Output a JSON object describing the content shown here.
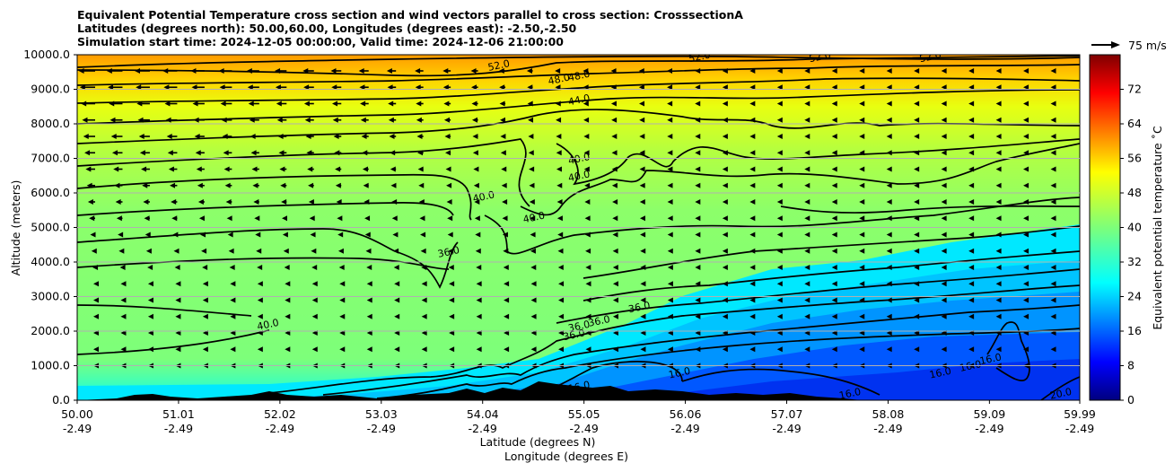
{
  "header": {
    "title_line1": "Equivalent Potential Temperature cross section and wind vectors parallel to cross section: CrosssectionA",
    "title_line2": "Latitudes (degrees north): 50.00,60.00, Longitudes (degrees east): -2.50,-2.50",
    "title_line3": "Simulation start time: 2024-12-05 00:00:00, Valid time: 2024-12-06 21:00:00"
  },
  "chart_data": {
    "type": "heatmap",
    "xlabel_line1": "Latitude (degrees N)",
    "xlabel_line2": "Longitude (degrees E)",
    "ylabel": "Altitude (meters)",
    "xlim": [
      50.0,
      59.99
    ],
    "ylim": [
      0,
      10000
    ],
    "x_ticks": [
      {
        "lat": "50.00",
        "lon": "-2.49",
        "value": 50.0
      },
      {
        "lat": "51.01",
        "lon": "-2.49",
        "value": 51.01
      },
      {
        "lat": "52.02",
        "lon": "-2.49",
        "value": 52.02
      },
      {
        "lat": "53.03",
        "lon": "-2.49",
        "value": 53.03
      },
      {
        "lat": "54.04",
        "lon": "-2.49",
        "value": 54.04
      },
      {
        "lat": "55.05",
        "lon": "-2.49",
        "value": 55.05
      },
      {
        "lat": "56.06",
        "lon": "-2.49",
        "value": 56.06
      },
      {
        "lat": "57.07",
        "lon": "-2.49",
        "value": 57.07
      },
      {
        "lat": "58.08",
        "lon": "-2.49",
        "value": 58.08
      },
      {
        "lat": "59.09",
        "lon": "-2.49",
        "value": 59.09
      },
      {
        "lat": "59.99",
        "lon": "-2.49",
        "value": 59.99
      }
    ],
    "y_ticks": [
      {
        "label": "0.0",
        "value": 0
      },
      {
        "label": "1000.0",
        "value": 1000
      },
      {
        "label": "2000.0",
        "value": 2000
      },
      {
        "label": "3000.0",
        "value": 3000
      },
      {
        "label": "4000.0",
        "value": 4000
      },
      {
        "label": "5000.0",
        "value": 5000
      },
      {
        "label": "6000.0",
        "value": 6000
      },
      {
        "label": "7000.0",
        "value": 7000
      },
      {
        "label": "8000.0",
        "value": 8000
      },
      {
        "label": "9000.0",
        "value": 9000
      },
      {
        "label": "10000.0",
        "value": 10000
      }
    ],
    "grid": "horizontal",
    "colorbar": {
      "label": "Equivalent potential temperature ˚C",
      "min": 0,
      "max": 80,
      "ticks": [
        "0",
        "8",
        "16",
        "24",
        "32",
        "40",
        "48",
        "56",
        "64",
        "72"
      ],
      "tick_values": [
        0,
        8,
        16,
        24,
        32,
        40,
        48,
        56,
        64,
        72
      ],
      "colormap": "jet"
    },
    "wind_key": {
      "label": "75 m/s",
      "value": 75
    },
    "contour_labels": [
      {
        "text": "52.0",
        "x": 54.2,
        "y": 9700
      },
      {
        "text": "48.0",
        "x": 54.8,
        "y": 9300
      },
      {
        "text": "48.0",
        "x": 55.0,
        "y": 9400
      },
      {
        "text": "44.0",
        "x": 55.0,
        "y": 8700
      },
      {
        "text": "52.0",
        "x": 56.2,
        "y": 9950
      },
      {
        "text": "52.0",
        "x": 57.4,
        "y": 9950
      },
      {
        "text": "52.0",
        "x": 58.5,
        "y": 9950
      },
      {
        "text": "40.0",
        "x": 54.05,
        "y": 5900
      },
      {
        "text": "40.0",
        "x": 54.55,
        "y": 5300
      },
      {
        "text": "40.0",
        "x": 55.0,
        "y": 7000
      },
      {
        "text": "40.0",
        "x": 55.0,
        "y": 6500
      },
      {
        "text": "36.0",
        "x": 53.7,
        "y": 4300
      },
      {
        "text": "40.0",
        "x": 51.9,
        "y": 2200
      },
      {
        "text": "36.0",
        "x": 55.6,
        "y": 2700
      },
      {
        "text": "36.0",
        "x": 55.2,
        "y": 2300
      },
      {
        "text": "36.0",
        "x": 55.0,
        "y": 2150
      },
      {
        "text": "36.0",
        "x": 54.95,
        "y": 1900
      },
      {
        "text": "16.0",
        "x": 56.0,
        "y": 800
      },
      {
        "text": "16.0",
        "x": 55.0,
        "y": 400
      },
      {
        "text": "16.0",
        "x": 57.7,
        "y": 200
      },
      {
        "text": "16.0",
        "x": 58.6,
        "y": 800
      },
      {
        "text": "16.0",
        "x": 58.9,
        "y": 1000
      },
      {
        "text": "16.0",
        "x": 59.1,
        "y": 1200
      },
      {
        "text": "20.0",
        "x": 59.8,
        "y": 200
      }
    ]
  }
}
